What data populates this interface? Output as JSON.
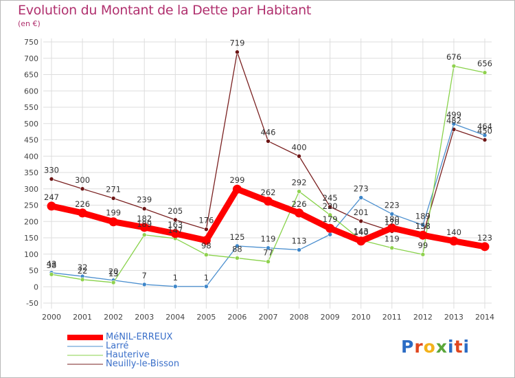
{
  "header": {
    "title": "Evolution du Montant de la Dette par Habitant",
    "subtitle": "(en €)"
  },
  "logo": {
    "text": "Proxiti",
    "letter_colors": [
      "#2b6cc4",
      "#e0461e",
      "#f3b21b",
      "#5aa63a",
      "#2b6cc4",
      "#e0461e",
      "#2b6cc4"
    ]
  },
  "chart_data": {
    "type": "line",
    "x": [
      "2000",
      "2001",
      "2002",
      "2003",
      "2004",
      "2005",
      "2006",
      "2007",
      "2008",
      "2009",
      "2010",
      "2011",
      "2012",
      "2013",
      "2014"
    ],
    "ylim": [
      -50,
      750
    ],
    "yticks": [
      "-50",
      "0",
      "50",
      "100",
      "150",
      "200",
      "250",
      "300",
      "350",
      "400",
      "450",
      "500",
      "550",
      "600",
      "650",
      "700",
      "750"
    ],
    "grid": true,
    "legend_position": "bottom-left",
    "series": [
      {
        "name": "Neuilly-le-Bisson",
        "color": "#7a2020",
        "values": [
          330,
          300,
          271,
          239,
          205,
          176,
          719,
          446,
          400,
          245,
          201,
          170,
          158,
          482,
          450
        ],
        "labels": [
          "330",
          "300",
          "271",
          "239",
          "205",
          "176",
          "719",
          "446",
          "400",
          "245",
          "201",
          "170",
          "158",
          "482",
          "450"
        ]
      },
      {
        "name": "Larré",
        "color": "#4b8fcf",
        "values": [
          43,
          32,
          20,
          7,
          1,
          1,
          125,
          119,
          113,
          160,
          273,
          223,
          189,
          499,
          464
        ],
        "labels": [
          "43",
          "32",
          "20",
          "7",
          "1",
          "1",
          "125",
          "119",
          "113",
          "",
          "273",
          "223",
          "189",
          "499",
          "464"
        ]
      },
      {
        "name": "Hauterive",
        "color": "#88d24a",
        "values": [
          38,
          22,
          13,
          159,
          148,
          98,
          88,
          77,
          292,
          220,
          143,
          119,
          99,
          676,
          656
        ],
        "labels": [
          "38",
          "22",
          "13",
          "",
          "",
          "98",
          "88",
          "77",
          "292",
          "220",
          "143",
          "119",
          "99",
          "676",
          "656"
        ]
      },
      {
        "name": "MéNIL-ERREUX",
        "color": "#ff0000",
        "values": [
          247,
          226,
          199,
          182,
          163,
          142,
          299,
          262,
          226,
          179,
          140,
          180,
          158,
          140,
          123
        ],
        "labels": [
          "247",
          "226",
          "199",
          "182",
          "163",
          "",
          "299",
          "262",
          "226",
          "179",
          "140",
          "180",
          "158",
          "140",
          "123"
        ],
        "extra_labels": [
          "",
          "",
          "",
          "189",
          "147",
          "",
          "",
          "",
          "",
          "",
          "",
          "",
          "",
          "",
          ""
        ]
      }
    ]
  }
}
